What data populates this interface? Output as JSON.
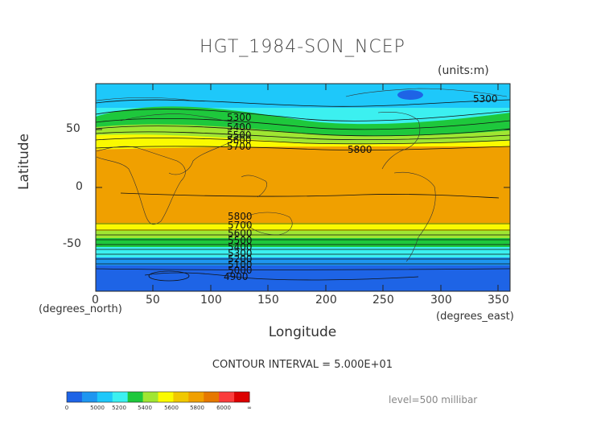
{
  "title": "HGT_1984-SON_NCEP",
  "units": "(units:m)",
  "y_axis": {
    "label": "Latitude",
    "ticks": [
      "50",
      "0",
      "-50"
    ],
    "note": "(degrees_north)"
  },
  "x_axis": {
    "label": "Longitude",
    "ticks": [
      "0",
      "50",
      "100",
      "150",
      "200",
      "250",
      "300",
      "350"
    ],
    "note": "(degrees_east)"
  },
  "contour_interval": "CONTOUR INTERVAL = 5.000E+01",
  "level": "level=500 millibar",
  "contour_labels": [
    "5300",
    "5400",
    "5500",
    "5600",
    "5700",
    "5800",
    "5800",
    "5700",
    "5600",
    "5500",
    "5400",
    "5300",
    "5200",
    "5100",
    "5000",
    "4900",
    "5300"
  ],
  "colorbar": {
    "ticks": [
      "0",
      "5000",
      "5200",
      "5400",
      "5600",
      "5800",
      "6000",
      "∞"
    ],
    "colors": [
      "#1e64e6",
      "#1e96f0",
      "#1ec8fa",
      "#3cf0f0",
      "#1ec83c",
      "#a0e632",
      "#fafa00",
      "#f0c800",
      "#f0a000",
      "#e67800",
      "#fa3c3c",
      "#dc0000"
    ]
  },
  "map_colors": {
    "ocean_blue": "#1e64e6",
    "mid_blue": "#1e96f0",
    "light_blue": "#1ec8fa",
    "cyan": "#3cf0f0",
    "green": "#1ec83c",
    "light_green": "#a0e632",
    "yellow": "#fafa00",
    "orange": "#f0a000"
  }
}
